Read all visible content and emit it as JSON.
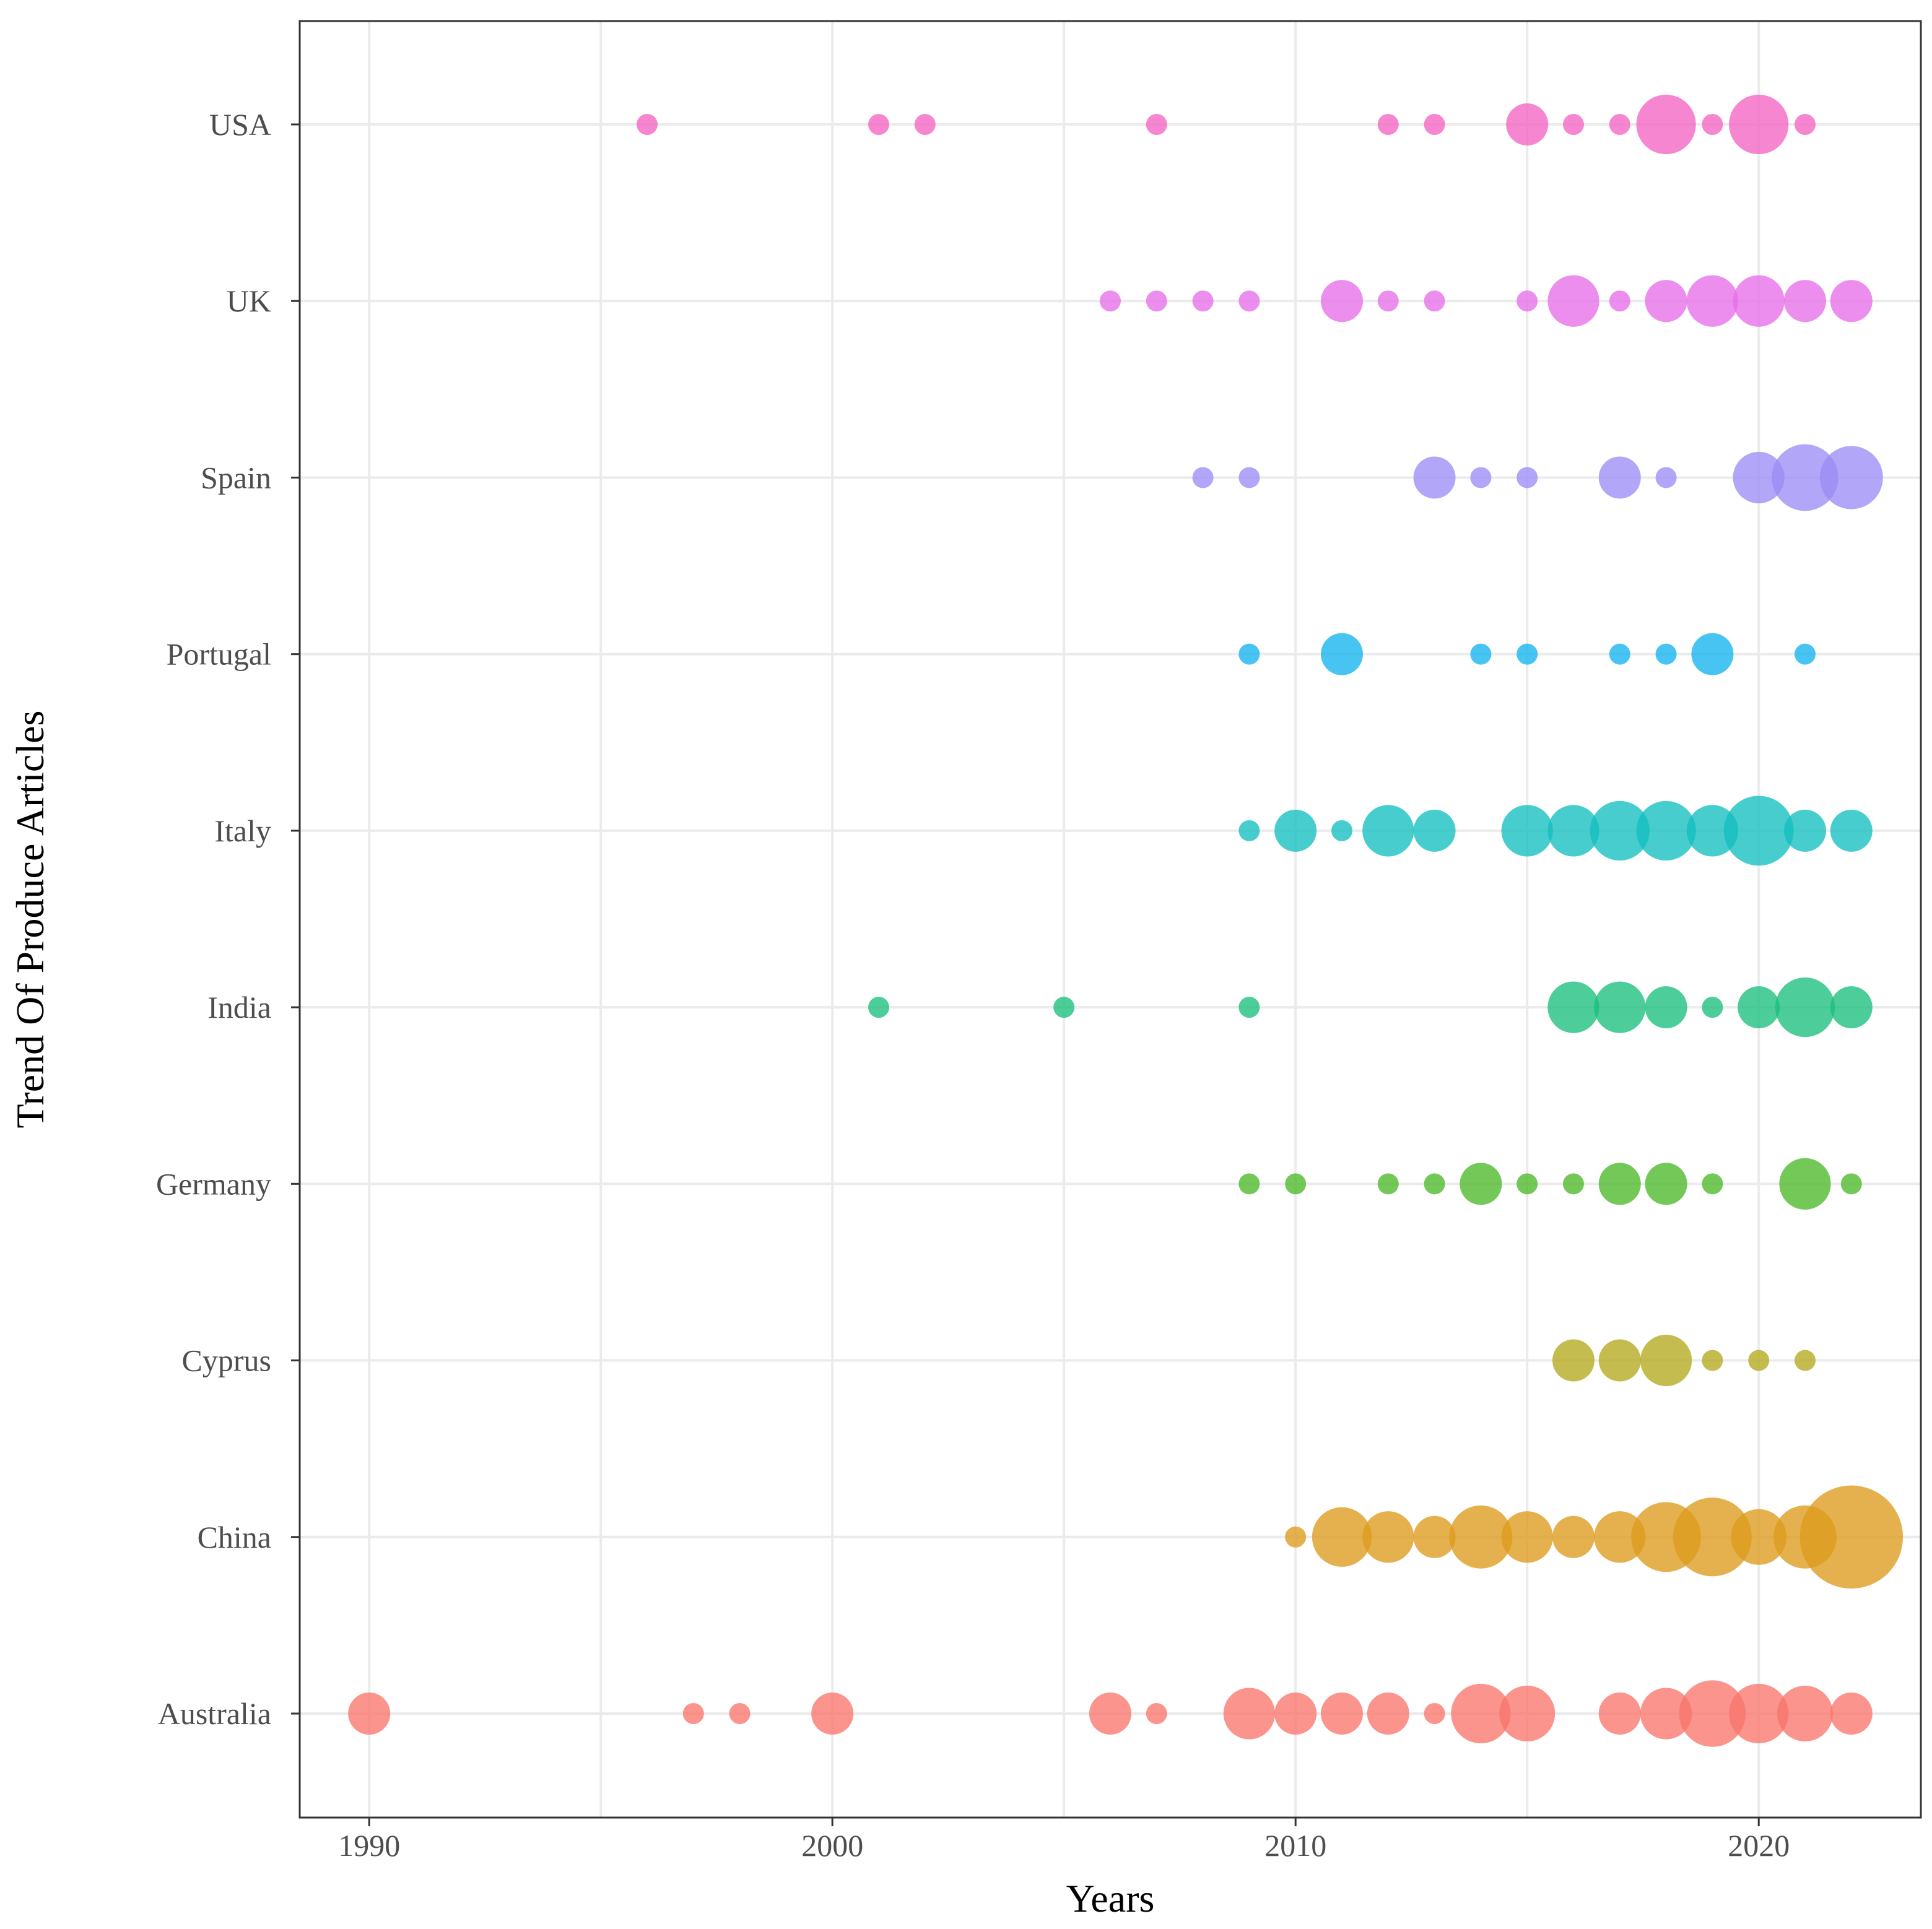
{
  "chart_data": {
    "type": "scatter",
    "title": "",
    "xlabel": "Years",
    "ylabel": "Trend Of Produce Articles",
    "xlim": [
      1988.5,
      2023.5
    ],
    "x_ticks": [
      1990,
      2000,
      2010,
      2020
    ],
    "x_tick_labels": [
      "1990",
      "2000",
      "2010",
      "2020"
    ],
    "grid": true,
    "legend": "none",
    "size_encoding": "bubble size proportional to number of articles (relative estimate)",
    "categories": [
      "Australia",
      "China",
      "Cyprus",
      "Germany",
      "India",
      "Italy",
      "Portugal",
      "Spain",
      "UK",
      "USA"
    ],
    "series": [
      {
        "name": "Australia",
        "color": "#F8766D",
        "points": [
          {
            "x": 1990,
            "size": 4
          },
          {
            "x": 1997,
            "size": 1
          },
          {
            "x": 1998,
            "size": 1
          },
          {
            "x": 2000,
            "size": 4
          },
          {
            "x": 2006,
            "size": 4
          },
          {
            "x": 2007,
            "size": 1
          },
          {
            "x": 2009,
            "size": 6
          },
          {
            "x": 2010,
            "size": 4
          },
          {
            "x": 2011,
            "size": 4
          },
          {
            "x": 2012,
            "size": 4
          },
          {
            "x": 2013,
            "size": 1
          },
          {
            "x": 2014,
            "size": 8
          },
          {
            "x": 2015,
            "size": 7
          },
          {
            "x": 2017,
            "size": 4
          },
          {
            "x": 2018,
            "size": 6
          },
          {
            "x": 2019,
            "size": 10
          },
          {
            "x": 2020,
            "size": 8
          },
          {
            "x": 2021,
            "size": 7
          },
          {
            "x": 2022,
            "size": 4
          }
        ]
      },
      {
        "name": "China",
        "color": "#DE9B1D",
        "points": [
          {
            "x": 2010,
            "size": 1
          },
          {
            "x": 2011,
            "size": 8
          },
          {
            "x": 2012,
            "size": 6
          },
          {
            "x": 2013,
            "size": 4
          },
          {
            "x": 2014,
            "size": 9
          },
          {
            "x": 2015,
            "size": 6
          },
          {
            "x": 2016,
            "size": 4
          },
          {
            "x": 2017,
            "size": 6
          },
          {
            "x": 2018,
            "size": 11
          },
          {
            "x": 2019,
            "size": 14
          },
          {
            "x": 2020,
            "size": 7
          },
          {
            "x": 2021,
            "size": 9
          },
          {
            "x": 2022,
            "size": 24
          }
        ]
      },
      {
        "name": "Cyprus",
        "color": "#B3A91E",
        "points": [
          {
            "x": 2016,
            "size": 4
          },
          {
            "x": 2017,
            "size": 4
          },
          {
            "x": 2018,
            "size": 6
          },
          {
            "x": 2019,
            "size": 1
          },
          {
            "x": 2020,
            "size": 1
          },
          {
            "x": 2021,
            "size": 1
          }
        ]
      },
      {
        "name": "Germany",
        "color": "#4CB929",
        "points": [
          {
            "x": 2009,
            "size": 1
          },
          {
            "x": 2010,
            "size": 1
          },
          {
            "x": 2012,
            "size": 1
          },
          {
            "x": 2013,
            "size": 1
          },
          {
            "x": 2014,
            "size": 4
          },
          {
            "x": 2015,
            "size": 1
          },
          {
            "x": 2016,
            "size": 1
          },
          {
            "x": 2017,
            "size": 4
          },
          {
            "x": 2018,
            "size": 4
          },
          {
            "x": 2019,
            "size": 1
          },
          {
            "x": 2021,
            "size": 6
          },
          {
            "x": 2022,
            "size": 1
          }
        ]
      },
      {
        "name": "India",
        "color": "#19BF7E",
        "points": [
          {
            "x": 2001,
            "size": 1
          },
          {
            "x": 2005,
            "size": 1
          },
          {
            "x": 2009,
            "size": 1
          },
          {
            "x": 2016,
            "size": 6
          },
          {
            "x": 2017,
            "size": 6
          },
          {
            "x": 2018,
            "size": 4
          },
          {
            "x": 2019,
            "size": 1
          },
          {
            "x": 2020,
            "size": 4
          },
          {
            "x": 2021,
            "size": 8
          },
          {
            "x": 2022,
            "size": 4
          }
        ]
      },
      {
        "name": "Italy",
        "color": "#13BFC0",
        "points": [
          {
            "x": 2009,
            "size": 1
          },
          {
            "x": 2010,
            "size": 4
          },
          {
            "x": 2011,
            "size": 1
          },
          {
            "x": 2012,
            "size": 6
          },
          {
            "x": 2013,
            "size": 4
          },
          {
            "x": 2015,
            "size": 6
          },
          {
            "x": 2016,
            "size": 6
          },
          {
            "x": 2017,
            "size": 8
          },
          {
            "x": 2018,
            "size": 8
          },
          {
            "x": 2019,
            "size": 6
          },
          {
            "x": 2020,
            "size": 11
          },
          {
            "x": 2021,
            "size": 4
          },
          {
            "x": 2022,
            "size": 4
          }
        ]
      },
      {
        "name": "Portugal",
        "color": "#14B3F0",
        "points": [
          {
            "x": 2009,
            "size": 1
          },
          {
            "x": 2011,
            "size": 4
          },
          {
            "x": 2014,
            "size": 1
          },
          {
            "x": 2015,
            "size": 1
          },
          {
            "x": 2017,
            "size": 1
          },
          {
            "x": 2018,
            "size": 1
          },
          {
            "x": 2019,
            "size": 4
          },
          {
            "x": 2021,
            "size": 1
          }
        ]
      },
      {
        "name": "Spain",
        "color": "#9B8DF5",
        "points": [
          {
            "x": 2008,
            "size": 1
          },
          {
            "x": 2009,
            "size": 1
          },
          {
            "x": 2013,
            "size": 4
          },
          {
            "x": 2014,
            "size": 1
          },
          {
            "x": 2015,
            "size": 1
          },
          {
            "x": 2017,
            "size": 4
          },
          {
            "x": 2018,
            "size": 1
          },
          {
            "x": 2020,
            "size": 6
          },
          {
            "x": 2021,
            "size": 10
          },
          {
            "x": 2022,
            "size": 9
          }
        ]
      },
      {
        "name": "UK",
        "color": "#E76EE8",
        "points": [
          {
            "x": 2006,
            "size": 1
          },
          {
            "x": 2007,
            "size": 1
          },
          {
            "x": 2008,
            "size": 1
          },
          {
            "x": 2009,
            "size": 1
          },
          {
            "x": 2011,
            "size": 4
          },
          {
            "x": 2012,
            "size": 1
          },
          {
            "x": 2013,
            "size": 1
          },
          {
            "x": 2015,
            "size": 1
          },
          {
            "x": 2016,
            "size": 6
          },
          {
            "x": 2017,
            "size": 1
          },
          {
            "x": 2018,
            "size": 4
          },
          {
            "x": 2019,
            "size": 6
          },
          {
            "x": 2020,
            "size": 6
          },
          {
            "x": 2021,
            "size": 4
          },
          {
            "x": 2022,
            "size": 4
          }
        ]
      },
      {
        "name": "USA",
        "color": "#F564C4",
        "points": [
          {
            "x": 1996,
            "size": 1
          },
          {
            "x": 2001,
            "size": 1
          },
          {
            "x": 2002,
            "size": 1
          },
          {
            "x": 2007,
            "size": 1
          },
          {
            "x": 2012,
            "size": 1
          },
          {
            "x": 2013,
            "size": 1
          },
          {
            "x": 2015,
            "size": 4
          },
          {
            "x": 2016,
            "size": 1
          },
          {
            "x": 2017,
            "size": 1
          },
          {
            "x": 2018,
            "size": 8
          },
          {
            "x": 2019,
            "size": 1
          },
          {
            "x": 2020,
            "size": 8
          },
          {
            "x": 2021,
            "size": 1
          }
        ]
      }
    ]
  }
}
